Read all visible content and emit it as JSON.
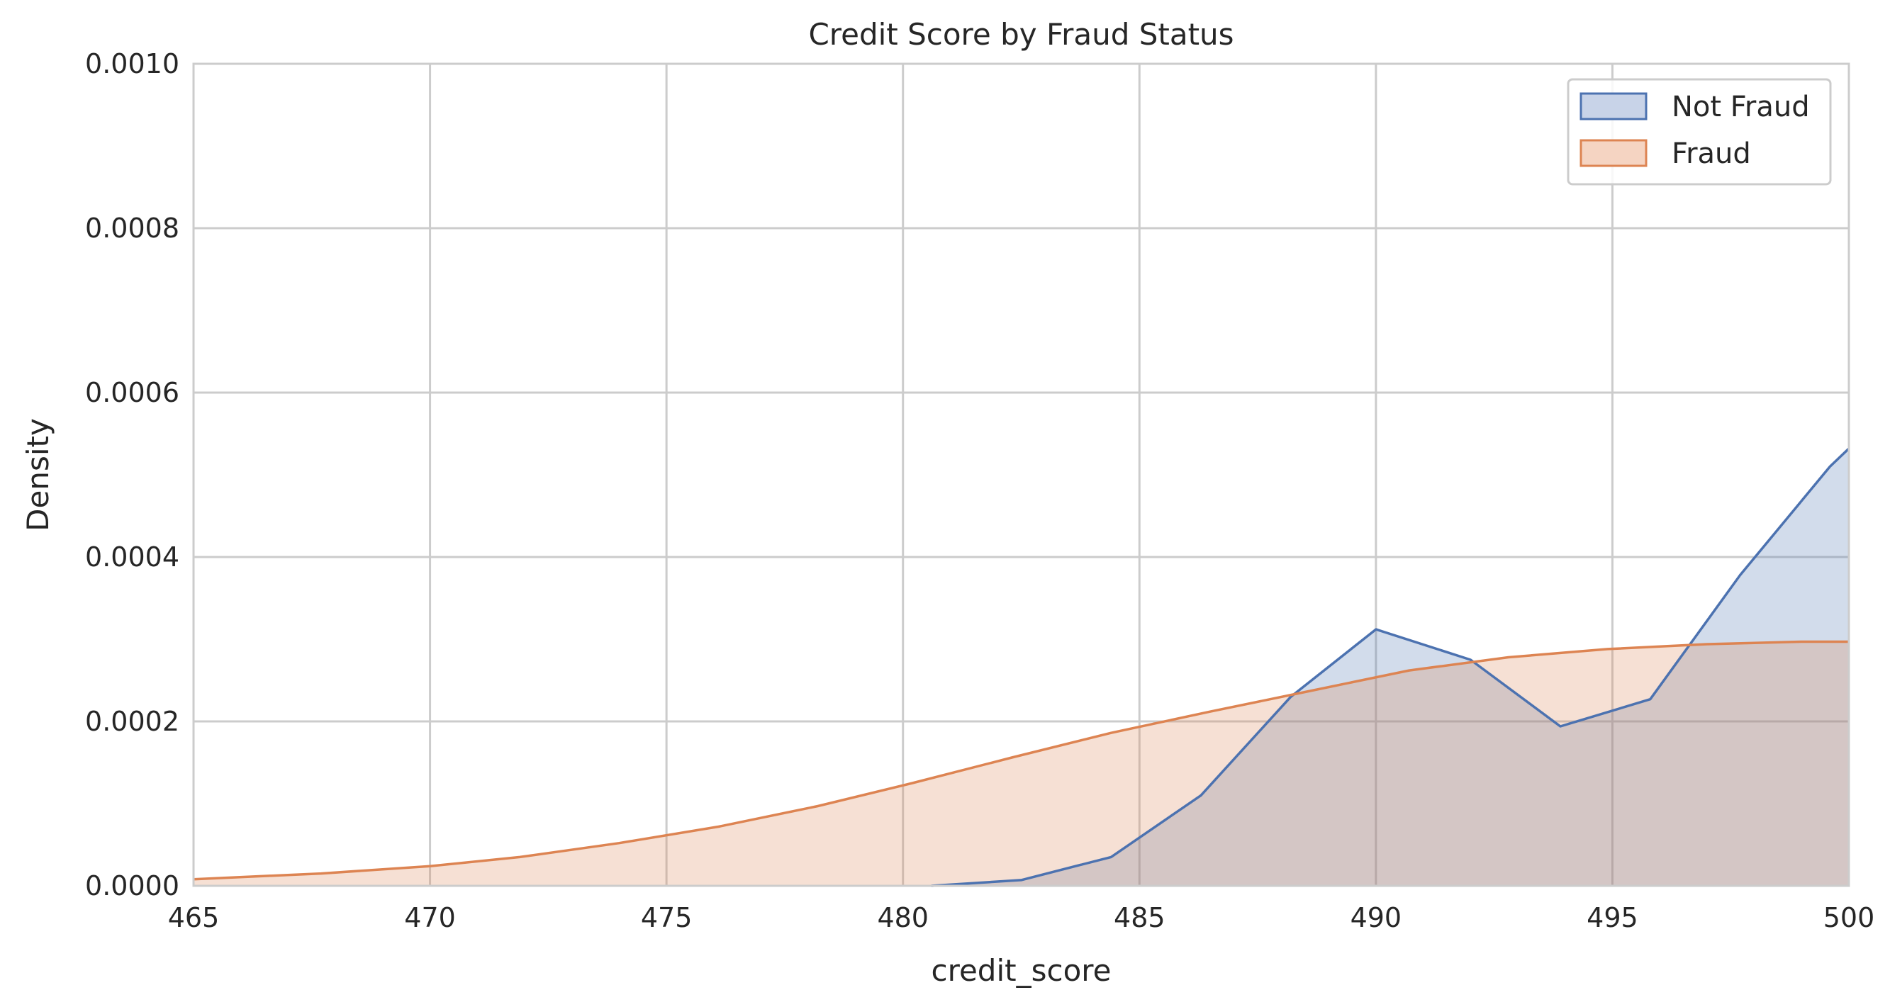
{
  "chart_data": {
    "type": "area",
    "title": "Credit Score by Fraud Status",
    "xlabel": "credit_score",
    "ylabel": "Density",
    "xlim": [
      465,
      500
    ],
    "ylim": [
      0,
      0.001
    ],
    "x_ticks": [
      465,
      470,
      475,
      480,
      485,
      490,
      495,
      500
    ],
    "x_tick_labels": [
      "465",
      "470",
      "475",
      "480",
      "485",
      "490",
      "495",
      "500"
    ],
    "y_ticks": [
      0,
      0.0002,
      0.0004,
      0.0006,
      0.0008,
      0.001
    ],
    "y_tick_labels": [
      "0.0000",
      "0.0002",
      "0.0004",
      "0.0006",
      "0.0008",
      "0.0010"
    ],
    "grid": true,
    "legend_position": "top-right",
    "series": [
      {
        "name": "Not Fraud",
        "color": "#4c72b0",
        "fill": "#c8d3e8",
        "points": [
          [
            480.6,
            0.0
          ],
          [
            482.5,
            7e-06
          ],
          [
            484.4,
            3.5e-05
          ],
          [
            486.3,
            0.00011
          ],
          [
            488.2,
            0.00023
          ],
          [
            490.0,
            0.000312
          ],
          [
            492.0,
            0.000275
          ],
          [
            493.9,
            0.000194
          ],
          [
            495.8,
            0.000227
          ],
          [
            497.7,
            0.000378
          ],
          [
            499.6,
            0.00051
          ],
          [
            500.0,
            0.000532
          ]
        ]
      },
      {
        "name": "Fraud",
        "color": "#dd8452",
        "fill": "#f5d4c2",
        "points": [
          [
            465.0,
            8e-06
          ],
          [
            467.7,
            1.5e-05
          ],
          [
            470.0,
            2.4e-05
          ],
          [
            471.9,
            3.5e-05
          ],
          [
            474.0,
            5.2e-05
          ],
          [
            476.1,
            7.2e-05
          ],
          [
            478.2,
            9.7e-05
          ],
          [
            480.2,
            0.000125
          ],
          [
            482.3,
            0.000156
          ],
          [
            484.4,
            0.000186
          ],
          [
            486.5,
            0.000212
          ],
          [
            488.6,
            0.000237
          ],
          [
            490.7,
            0.000262
          ],
          [
            492.8,
            0.000278
          ],
          [
            494.9,
            0.000288
          ],
          [
            497.0,
            0.000294
          ],
          [
            499.0,
            0.000297
          ],
          [
            500.0,
            0.000297
          ]
        ]
      }
    ]
  }
}
